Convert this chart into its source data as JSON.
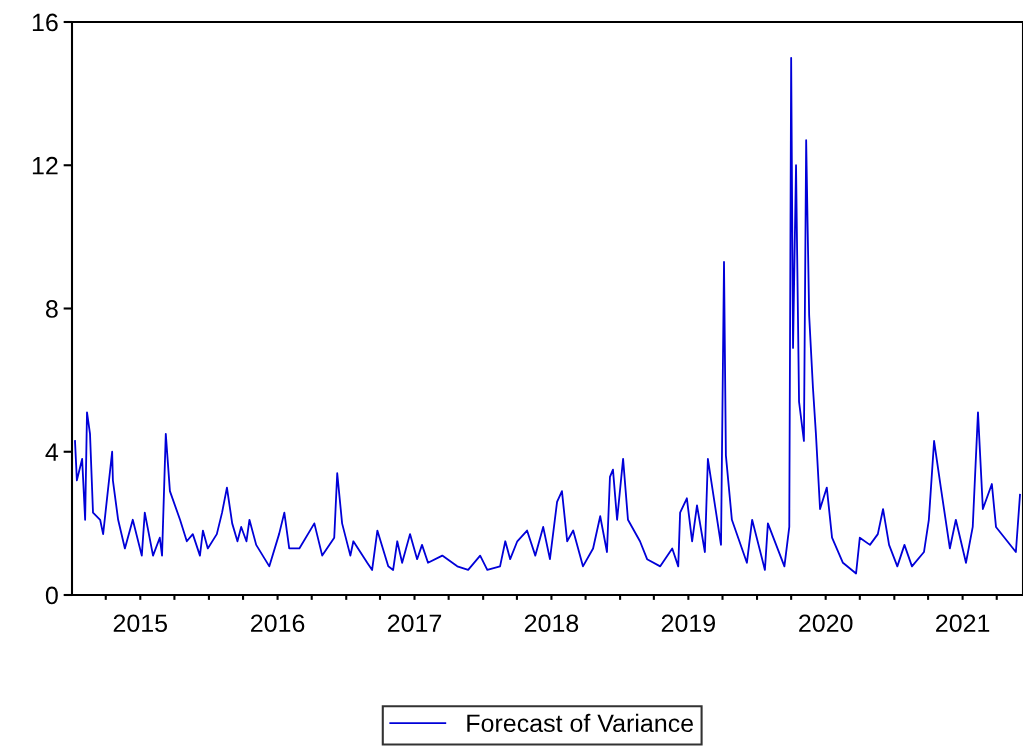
{
  "chart_data": {
    "type": "line",
    "x": [
      "2015-01-09",
      "2015-01-14",
      "2015-01-28",
      "2015-02-05",
      "2015-02-10",
      "2015-02-18",
      "2015-02-26",
      "2015-03-17",
      "2015-03-25",
      "2015-04-18",
      "2015-04-20",
      "2015-05-04",
      "2015-05-22",
      "2015-06-12",
      "2015-07-06",
      "2015-07-14",
      "2015-08-05",
      "2015-08-23",
      "2015-08-29",
      "2015-09-08",
      "2015-09-19",
      "2015-10-16",
      "2015-11-03",
      "2015-11-19",
      "2015-12-08",
      "2015-12-16",
      "2015-12-29",
      "2016-01-22",
      "2016-02-05",
      "2016-02-18",
      "2016-03-03",
      "2016-03-17",
      "2016-03-27",
      "2016-04-10",
      "2016-04-18",
      "2016-05-06",
      "2016-06-10",
      "2016-07-06",
      "2016-07-20",
      "2016-08-02",
      "2016-08-29",
      "2016-10-08",
      "2016-10-29",
      "2016-11-30",
      "2016-12-08",
      "2016-12-21",
      "2017-01-12",
      "2017-01-20",
      "2017-02-26",
      "2017-03-11",
      "2017-03-25",
      "2017-04-23",
      "2017-05-06",
      "2017-05-17",
      "2017-05-30",
      "2017-06-20",
      "2017-07-09",
      "2017-07-22",
      "2017-08-07",
      "2017-09-14",
      "2017-10-24",
      "2017-11-22",
      "2017-12-24",
      "2018-01-12",
      "2018-02-15",
      "2018-03-01",
      "2018-03-14",
      "2018-04-02",
      "2018-04-28",
      "2018-05-20",
      "2018-06-10",
      "2018-06-28",
      "2018-07-17",
      "2018-07-30",
      "2018-08-13",
      "2018-08-29",
      "2018-09-24",
      "2018-10-21",
      "2018-11-09",
      "2018-11-27",
      "2018-12-05",
      "2018-12-13",
      "2018-12-24",
      "2019-01-09",
      "2019-01-22",
      "2019-02-23",
      "2019-03-14",
      "2019-04-18",
      "2019-05-20",
      "2019-06-05",
      "2019-06-10",
      "2019-06-28",
      "2019-07-12",
      "2019-07-25",
      "2019-08-15",
      "2019-08-23",
      "2019-09-27",
      "2019-10-05",
      "2019-10-10",
      "2019-10-26",
      "2019-12-05",
      "2019-12-19",
      "2020-01-22",
      "2020-01-30",
      "2020-03-14",
      "2020-03-27",
      "2020-04-01",
      "2020-04-06",
      "2020-04-14",
      "2020-04-22",
      "2020-05-05",
      "2020-05-11",
      "2020-05-19",
      "2020-05-29",
      "2020-06-06",
      "2020-06-17",
      "2020-07-05",
      "2020-07-19",
      "2020-08-17",
      "2020-09-21",
      "2020-10-01",
      "2020-10-28",
      "2020-11-18",
      "2020-12-02",
      "2020-12-18",
      "2021-01-09",
      "2021-01-28",
      "2021-02-17",
      "2021-03-21",
      "2021-04-03",
      "2021-04-17",
      "2021-05-05",
      "2021-05-29",
      "2021-06-14",
      "2021-07-11",
      "2021-07-29",
      "2021-08-12",
      "2021-08-25",
      "2021-09-18",
      "2021-09-29",
      "2021-11-21",
      "2021-12-02"
    ],
    "series": [
      {
        "name": "Forecast of Variance",
        "color": "#0000d8",
        "values": [
          4.3,
          3.2,
          3.8,
          2.1,
          5.1,
          4.5,
          2.3,
          2.1,
          1.7,
          4.0,
          3.2,
          2.1,
          1.3,
          2.1,
          1.1,
          2.3,
          1.1,
          1.6,
          1.1,
          4.5,
          2.9,
          2.1,
          1.5,
          1.7,
          1.1,
          1.8,
          1.3,
          1.7,
          2.3,
          3.0,
          2.0,
          1.5,
          1.9,
          1.5,
          2.1,
          1.4,
          0.8,
          1.7,
          2.3,
          1.3,
          1.3,
          2.0,
          1.1,
          1.6,
          3.4,
          2.0,
          1.1,
          1.5,
          0.9,
          0.7,
          1.8,
          0.8,
          0.7,
          1.5,
          0.9,
          1.7,
          1.0,
          1.4,
          0.9,
          1.1,
          0.8,
          0.7,
          1.1,
          0.7,
          0.8,
          1.5,
          1.0,
          1.5,
          1.8,
          1.1,
          1.9,
          1.0,
          2.6,
          2.9,
          1.5,
          1.8,
          0.8,
          1.3,
          2.2,
          1.2,
          3.3,
          3.5,
          2.1,
          3.8,
          2.1,
          1.5,
          1.0,
          0.8,
          1.3,
          0.8,
          2.3,
          2.7,
          1.5,
          2.5,
          1.2,
          3.8,
          1.4,
          9.3,
          3.9,
          2.1,
          0.9,
          2.1,
          0.7,
          2.0,
          0.8,
          1.9,
          15.0,
          6.9,
          12.0,
          5.4,
          4.3,
          12.7,
          7.8,
          5.8,
          4.5,
          2.4,
          3.0,
          1.6,
          0.9,
          0.6,
          1.6,
          1.4,
          1.7,
          2.4,
          1.4,
          0.8,
          1.4,
          0.8,
          1.2,
          2.1,
          4.3,
          3.0,
          1.3,
          2.1,
          0.9,
          1.9,
          5.1,
          2.4,
          3.1,
          1.9,
          1.2,
          2.8
        ]
      }
    ],
    "xlim": [
      "2015-01-01",
      "2021-12-10"
    ],
    "xticks": [
      {
        "value": "2015-04-01",
        "label": null
      },
      {
        "value": "2015-07-02",
        "label": "2015"
      },
      {
        "value": "2015-10-01",
        "label": null
      },
      {
        "value": "2016-01-01",
        "label": null
      },
      {
        "value": "2016-04-01",
        "label": null
      },
      {
        "value": "2016-07-02",
        "label": "2016"
      },
      {
        "value": "2016-10-01",
        "label": null
      },
      {
        "value": "2017-01-01",
        "label": null
      },
      {
        "value": "2017-04-01",
        "label": null
      },
      {
        "value": "2017-07-02",
        "label": "2017"
      },
      {
        "value": "2017-10-01",
        "label": null
      },
      {
        "value": "2018-01-01",
        "label": null
      },
      {
        "value": "2018-04-01",
        "label": null
      },
      {
        "value": "2018-07-02",
        "label": "2018"
      },
      {
        "value": "2018-10-01",
        "label": null
      },
      {
        "value": "2019-01-01",
        "label": null
      },
      {
        "value": "2019-04-01",
        "label": null
      },
      {
        "value": "2019-07-02",
        "label": "2019"
      },
      {
        "value": "2019-10-01",
        "label": null
      },
      {
        "value": "2020-01-01",
        "label": null
      },
      {
        "value": "2020-04-01",
        "label": null
      },
      {
        "value": "2020-07-02",
        "label": "2020"
      },
      {
        "value": "2020-10-01",
        "label": null
      },
      {
        "value": "2021-01-01",
        "label": null
      },
      {
        "value": "2021-04-01",
        "label": null
      },
      {
        "value": "2021-07-02",
        "label": "2021"
      },
      {
        "value": "2021-10-01",
        "label": null
      }
    ],
    "ylim": [
      0,
      16
    ],
    "yticks": [
      0,
      4,
      8,
      12,
      16
    ],
    "grid": false,
    "legend": "bottom",
    "line_style": "solid",
    "marker": "none"
  }
}
